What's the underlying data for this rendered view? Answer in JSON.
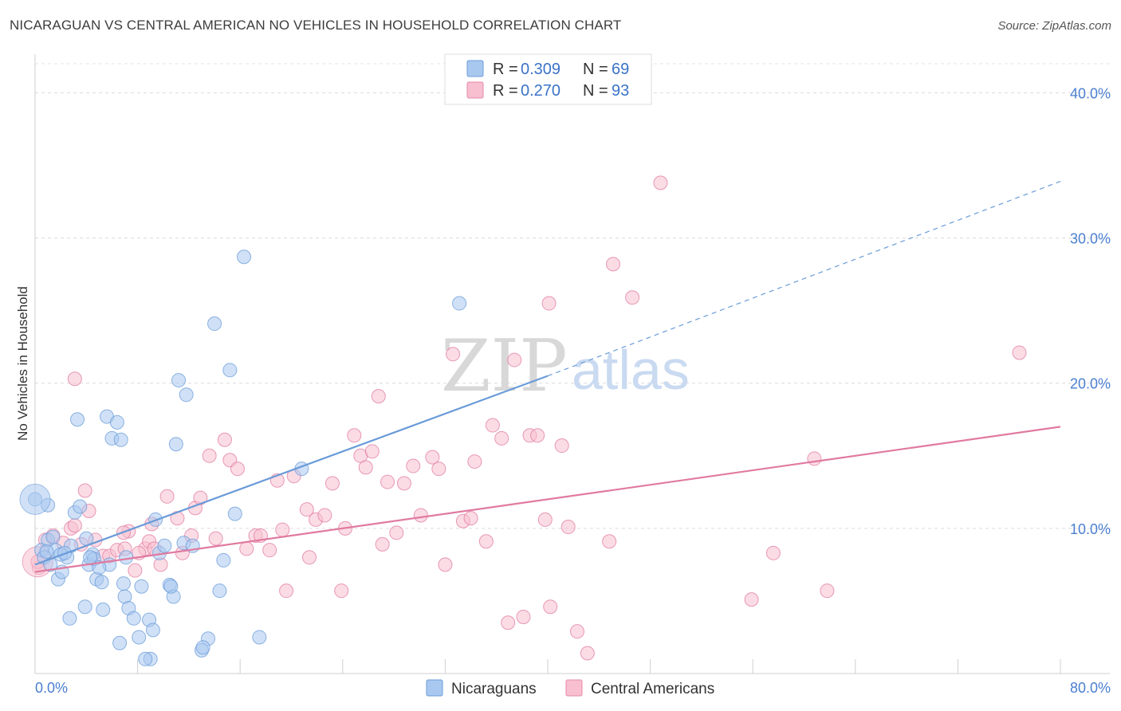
{
  "title": "NICARAGUAN VS CENTRAL AMERICAN NO VEHICLES IN HOUSEHOLD CORRELATION CHART",
  "source": "Source: ZipAtlas.com",
  "watermark": {
    "zip": "ZIP",
    "atlas": "atlas"
  },
  "legend": {
    "r_label": "R =",
    "n_label": "N =",
    "rows": [
      {
        "r": "0.309",
        "n": "69",
        "color": "#a9c8f0",
        "stroke": "#6a9bd8"
      },
      {
        "r": "0.270",
        "n": "93",
        "color": "#f7bfd0",
        "stroke": "#e58aa8"
      }
    ]
  },
  "bottom_legend": [
    "Nicaraguans",
    "Central Americans"
  ],
  "chart_data": {
    "type": "scatter",
    "title": "NICARAGUAN VS CENTRAL AMERICAN NO VEHICLES IN HOUSEHOLD CORRELATION CHART",
    "xlabel": "",
    "ylabel": "No Vehicles in Household",
    "xlim": [
      0,
      80
    ],
    "ylim": [
      0,
      42
    ],
    "x_tick_labels": [
      "0.0%",
      "80.0%"
    ],
    "y_ticks": [
      10,
      20,
      30,
      40
    ],
    "y_tick_labels": [
      "10.0%",
      "20.0%",
      "30.0%",
      "40.0%"
    ],
    "grid": "horizontal dashed",
    "legend_position": "top-center",
    "series": [
      {
        "name": "Nicaraguans",
        "color": "#6a9bd8",
        "fill": "#a9c8f0",
        "trend": {
          "x0": 0,
          "y0": 7.5,
          "x1": 40,
          "y1": 20.5,
          "dash_to_x": 80,
          "dash_to_y": 33.9
        },
        "points": [
          [
            0.0,
            12.0
          ],
          [
            1.0,
            11.6
          ],
          [
            0.5,
            8.5
          ],
          [
            0.7,
            8.0
          ],
          [
            1.0,
            9.2
          ],
          [
            1.2,
            7.5
          ],
          [
            1.6,
            8.5
          ],
          [
            1.8,
            6.5
          ],
          [
            2.1,
            7.0
          ],
          [
            2.5,
            8.0
          ],
          [
            2.8,
            8.8
          ],
          [
            3.1,
            11.1
          ],
          [
            3.5,
            11.5
          ],
          [
            3.3,
            17.5
          ],
          [
            4.0,
            9.3
          ],
          [
            4.2,
            7.5
          ],
          [
            4.5,
            8.2
          ],
          [
            4.6,
            7.9
          ],
          [
            4.8,
            6.5
          ],
          [
            5.2,
            6.3
          ],
          [
            5.6,
            17.7
          ],
          [
            5.8,
            7.5
          ],
          [
            6.0,
            16.2
          ],
          [
            6.4,
            17.3
          ],
          [
            6.7,
            16.1
          ],
          [
            7.0,
            5.3
          ],
          [
            7.3,
            4.5
          ],
          [
            7.7,
            3.8
          ],
          [
            8.1,
            2.5
          ],
          [
            8.3,
            6.0
          ],
          [
            8.9,
            3.7
          ],
          [
            9.2,
            3.0
          ],
          [
            9.4,
            10.6
          ],
          [
            9.7,
            8.3
          ],
          [
            10.1,
            8.8
          ],
          [
            10.5,
            6.1
          ],
          [
            10.8,
            5.3
          ],
          [
            11.0,
            15.8
          ],
          [
            11.2,
            20.2
          ],
          [
            11.6,
            9.0
          ],
          [
            11.8,
            19.2
          ],
          [
            12.3,
            8.8
          ],
          [
            13.0,
            1.6
          ],
          [
            13.5,
            2.4
          ],
          [
            14.0,
            24.1
          ],
          [
            14.4,
            5.7
          ],
          [
            14.7,
            7.8
          ],
          [
            15.2,
            20.9
          ],
          [
            15.6,
            11.0
          ],
          [
            16.3,
            28.7
          ],
          [
            17.5,
            2.5
          ],
          [
            20.8,
            14.1
          ],
          [
            33.1,
            25.5
          ],
          [
            5.3,
            4.4
          ],
          [
            6.6,
            2.1
          ],
          [
            6.9,
            6.2
          ],
          [
            2.7,
            3.8
          ],
          [
            9.0,
            1.0
          ],
          [
            7.1,
            8.0
          ],
          [
            3.9,
            4.6
          ],
          [
            1.4,
            9.4
          ],
          [
            0.9,
            8.4
          ],
          [
            2.0,
            8.2
          ],
          [
            13.1,
            1.8
          ],
          [
            10.6,
            6.0
          ],
          [
            8.6,
            1.0
          ],
          [
            2.3,
            8.3
          ],
          [
            5.0,
            7.3
          ],
          [
            4.3,
            8.0
          ]
        ],
        "big_points": [
          [
            0.0,
            12.0
          ]
        ]
      },
      {
        "name": "Central Americans",
        "color": "#e07aa0",
        "fill": "#f7bfd0",
        "trend": {
          "x0": 0,
          "y0": 7.0,
          "x1": 80,
          "y1": 17.0
        },
        "points": [
          [
            0.3,
            7.3
          ],
          [
            0.8,
            9.2
          ],
          [
            1.4,
            9.5
          ],
          [
            2.2,
            9.0
          ],
          [
            2.8,
            10.0
          ],
          [
            3.1,
            10.2
          ],
          [
            3.6,
            8.9
          ],
          [
            3.9,
            12.6
          ],
          [
            4.2,
            11.2
          ],
          [
            4.7,
            9.2
          ],
          [
            5.3,
            8.1
          ],
          [
            5.8,
            8.1
          ],
          [
            6.4,
            8.5
          ],
          [
            7.0,
            8.6
          ],
          [
            7.3,
            9.8
          ],
          [
            7.8,
            7.1
          ],
          [
            8.6,
            8.6
          ],
          [
            8.9,
            9.1
          ],
          [
            9.3,
            8.6
          ],
          [
            9.8,
            7.5
          ],
          [
            10.3,
            12.2
          ],
          [
            11.1,
            10.7
          ],
          [
            11.5,
            8.3
          ],
          [
            12.2,
            9.5
          ],
          [
            12.5,
            11.4
          ],
          [
            12.9,
            12.1
          ],
          [
            13.6,
            15.0
          ],
          [
            14.1,
            9.3
          ],
          [
            14.8,
            16.1
          ],
          [
            15.2,
            14.7
          ],
          [
            15.8,
            14.1
          ],
          [
            16.5,
            8.6
          ],
          [
            17.2,
            9.5
          ],
          [
            17.6,
            9.5
          ],
          [
            18.3,
            8.5
          ],
          [
            18.9,
            13.3
          ],
          [
            19.3,
            9.9
          ],
          [
            20.2,
            13.6
          ],
          [
            21.2,
            11.3
          ],
          [
            21.4,
            8.0
          ],
          [
            21.9,
            10.6
          ],
          [
            22.6,
            10.9
          ],
          [
            23.2,
            13.1
          ],
          [
            23.9,
            5.7
          ],
          [
            24.2,
            10.0
          ],
          [
            24.9,
            16.4
          ],
          [
            25.4,
            15.0
          ],
          [
            25.8,
            14.2
          ],
          [
            26.3,
            15.3
          ],
          [
            26.8,
            19.1
          ],
          [
            27.1,
            8.9
          ],
          [
            27.5,
            13.2
          ],
          [
            28.2,
            9.7
          ],
          [
            28.8,
            13.1
          ],
          [
            29.5,
            14.3
          ],
          [
            30.1,
            10.9
          ],
          [
            31.0,
            14.9
          ],
          [
            31.5,
            14.1
          ],
          [
            32.0,
            7.5
          ],
          [
            32.6,
            22.0
          ],
          [
            33.4,
            10.5
          ],
          [
            34.0,
            10.7
          ],
          [
            34.3,
            14.6
          ],
          [
            35.2,
            9.1
          ],
          [
            35.7,
            17.1
          ],
          [
            36.4,
            16.2
          ],
          [
            36.9,
            3.5
          ],
          [
            37.4,
            21.6
          ],
          [
            38.1,
            3.9
          ],
          [
            38.6,
            16.4
          ],
          [
            39.2,
            16.4
          ],
          [
            39.8,
            10.6
          ],
          [
            40.2,
            4.6
          ],
          [
            41.1,
            15.7
          ],
          [
            41.6,
            10.1
          ],
          [
            42.3,
            2.9
          ],
          [
            43.1,
            1.4
          ],
          [
            44.8,
            9.1
          ],
          [
            45.1,
            28.2
          ],
          [
            46.6,
            25.9
          ],
          [
            48.8,
            33.8
          ],
          [
            55.9,
            5.1
          ],
          [
            57.6,
            8.3
          ],
          [
            60.8,
            14.8
          ],
          [
            61.8,
            5.7
          ],
          [
            76.8,
            22.1
          ],
          [
            40.1,
            25.5
          ],
          [
            19.6,
            5.7
          ],
          [
            9.1,
            10.3
          ],
          [
            8.1,
            8.3
          ],
          [
            6.9,
            9.7
          ],
          [
            3.1,
            20.3
          ],
          [
            0.2,
            7.7
          ]
        ],
        "big_points": [
          [
            0.2,
            7.7
          ]
        ]
      }
    ]
  }
}
